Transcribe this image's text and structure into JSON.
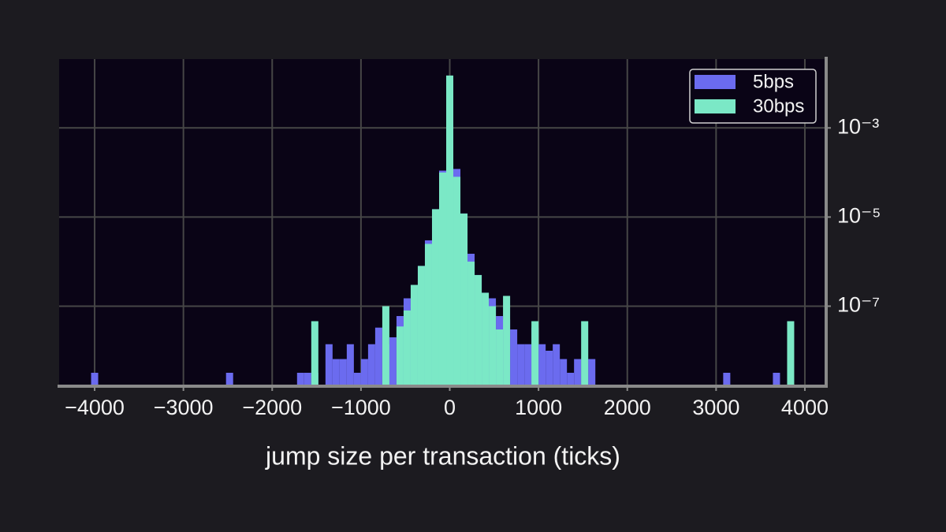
{
  "chart_data": {
    "type": "histogram",
    "xlabel": "jump size per transaction (ticks)",
    "bins": [
      -4040,
      -3960,
      -3880,
      -3800,
      -3720,
      -3640,
      -3560,
      -3480,
      -3400,
      -3320,
      -3240,
      -3160,
      -3080,
      -3000,
      -2920,
      -2840,
      -2760,
      -2680,
      -2600,
      -2520,
      -2440,
      -2360,
      -2280,
      -2200,
      -2120,
      -2040,
      -1960,
      -1880,
      -1800,
      -1720,
      -1640,
      -1560,
      -1480,
      -1400,
      -1320,
      -1240,
      -1160,
      -1080,
      -1000,
      -920,
      -840,
      -760,
      -680,
      -600,
      -520,
      -440,
      -360,
      -280,
      -200,
      -120,
      -40,
      40,
      120,
      200,
      280,
      360,
      440,
      520,
      600,
      680,
      760,
      840,
      920,
      1000,
      1080,
      1160,
      1240,
      1320,
      1400,
      1480,
      1560,
      1640,
      1720,
      1800,
      1880,
      1960,
      2040,
      2120,
      2200,
      2280,
      2360,
      2440,
      2520,
      2600,
      2680,
      2760,
      2840,
      2920,
      3000,
      3080,
      3160,
      3240,
      3320,
      3400,
      3480,
      3560,
      3640,
      3720,
      3800,
      3880
    ],
    "series": [
      {
        "name": "5bps",
        "color": "#6b6bef",
        "values": [
          3.2e-09,
          0,
          0,
          0,
          0,
          0,
          0,
          0,
          0,
          0,
          0,
          0,
          0,
          0,
          0,
          0,
          0,
          0,
          0,
          3.2e-09,
          0,
          0,
          0,
          0,
          0,
          0,
          0,
          0,
          0,
          3.2e-09,
          3.2e-09,
          3.2e-09,
          0,
          1.4e-08,
          6.5e-09,
          6.5e-09,
          1.4e-08,
          3.2e-09,
          6.5e-09,
          1.4e-08,
          3.3e-08,
          1.4e-08,
          2e-08,
          6e-08,
          1.5e-07,
          3e-07,
          8e-07,
          3e-06,
          1.5e-05,
          0.00011,
          0.0126,
          0.00012,
          1.2e-05,
          1.5e-06,
          5e-07,
          2e-07,
          1.5e-07,
          6e-08,
          5e-08,
          3e-08,
          1.4e-08,
          1.4e-08,
          3.3e-08,
          1.4e-08,
          1e-08,
          1.4e-08,
          6.5e-09,
          3.2e-09,
          6.5e-09,
          6.5e-09,
          6.5e-09,
          0,
          0,
          0,
          0,
          0,
          0,
          0,
          0,
          0,
          0,
          0,
          0,
          0,
          0,
          0,
          0,
          0,
          0,
          3.2e-09,
          0,
          0,
          0,
          0,
          0,
          0,
          3.2e-09,
          0,
          0
        ]
      },
      {
        "name": "30bps",
        "color": "#7be8c6",
        "values": [
          0,
          0,
          0,
          0,
          0,
          0,
          0,
          0,
          0,
          0,
          0,
          0,
          0,
          0,
          0,
          0,
          0,
          0,
          0,
          0,
          0,
          0,
          0,
          0,
          0,
          0,
          0,
          0,
          0,
          0,
          0,
          4.6e-08,
          0,
          0,
          0,
          0,
          0,
          0,
          0,
          0,
          0,
          1e-07,
          0,
          3.5e-08,
          8e-08,
          3e-07,
          8e-07,
          2.5e-06,
          1.5e-05,
          0.0001,
          0.015,
          8e-05,
          1.2e-05,
          1e-06,
          5e-07,
          2e-07,
          1e-07,
          3e-08,
          1.7e-07,
          0,
          0,
          0,
          4.6e-08,
          0,
          0,
          0,
          0,
          0,
          0,
          4.6e-08,
          0,
          0,
          0,
          0,
          0,
          0,
          0,
          0,
          0,
          0,
          0,
          0,
          0,
          0,
          0,
          0,
          0,
          0,
          0,
          0,
          0,
          0,
          0,
          0,
          0,
          0,
          0,
          0,
          4.6e-08
        ]
      }
    ],
    "xlim": [
      -4400,
      4240
    ],
    "xticks": [
      {
        "value": -4000,
        "label": "−4000"
      },
      {
        "value": -3000,
        "label": "−3000"
      },
      {
        "value": -2000,
        "label": "−2000"
      },
      {
        "value": -1000,
        "label": "−1000"
      },
      0,
      1000,
      2000,
      3000,
      4000
    ],
    "ylim": [
      1.6e-09,
      0.035
    ],
    "yticks": [
      {
        "value": 0.001,
        "label": "10⁻³"
      },
      {
        "value": 1e-05,
        "label": "10⁻⁵"
      },
      {
        "value": 1e-07,
        "label": "10⁻⁷"
      }
    ],
    "y_scale": "log",
    "grid": true,
    "legend": "upper right"
  }
}
